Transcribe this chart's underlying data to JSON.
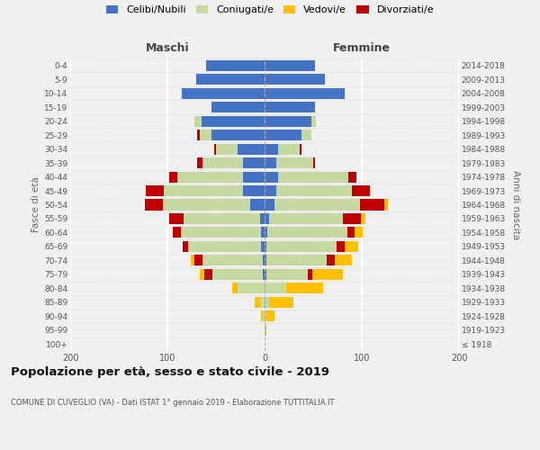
{
  "age_groups": [
    "100+",
    "95-99",
    "90-94",
    "85-89",
    "80-84",
    "75-79",
    "70-74",
    "65-69",
    "60-64",
    "55-59",
    "50-54",
    "45-49",
    "40-44",
    "35-39",
    "30-34",
    "25-29",
    "20-24",
    "15-19",
    "10-14",
    "5-9",
    "0-4"
  ],
  "birth_years": [
    "≤ 1918",
    "1919-1923",
    "1924-1928",
    "1929-1933",
    "1934-1938",
    "1939-1943",
    "1944-1948",
    "1949-1953",
    "1954-1958",
    "1959-1963",
    "1964-1968",
    "1969-1973",
    "1974-1978",
    "1979-1983",
    "1984-1988",
    "1989-1993",
    "1994-1998",
    "1999-2003",
    "2004-2008",
    "2009-2013",
    "2014-2018"
  ],
  "males": {
    "celibi": [
      0,
      0,
      0,
      0,
      0,
      2,
      2,
      4,
      4,
      5,
      15,
      22,
      22,
      22,
      28,
      55,
      65,
      55,
      85,
      70,
      60
    ],
    "coniugati": [
      0,
      0,
      2,
      5,
      28,
      52,
      62,
      75,
      82,
      78,
      90,
      82,
      68,
      42,
      22,
      12,
      7,
      0,
      0,
      0,
      0
    ],
    "vedovi": [
      0,
      0,
      2,
      5,
      5,
      5,
      4,
      0,
      0,
      0,
      0,
      0,
      0,
      0,
      0,
      0,
      0,
      0,
      0,
      0,
      0
    ],
    "divorziati": [
      0,
      0,
      0,
      0,
      0,
      8,
      8,
      5,
      8,
      15,
      18,
      18,
      8,
      5,
      2,
      2,
      0,
      0,
      0,
      0,
      0
    ]
  },
  "females": {
    "nubili": [
      0,
      0,
      0,
      0,
      0,
      2,
      2,
      2,
      3,
      5,
      10,
      12,
      14,
      12,
      14,
      38,
      48,
      52,
      82,
      62,
      52
    ],
    "coniugate": [
      0,
      0,
      2,
      5,
      22,
      42,
      62,
      72,
      82,
      76,
      88,
      78,
      72,
      38,
      22,
      10,
      5,
      0,
      0,
      0,
      0
    ],
    "vedove": [
      0,
      2,
      8,
      25,
      38,
      32,
      18,
      14,
      8,
      5,
      4,
      0,
      0,
      0,
      0,
      0,
      0,
      0,
      0,
      0,
      0
    ],
    "divorziate": [
      0,
      0,
      0,
      0,
      0,
      5,
      8,
      8,
      8,
      18,
      25,
      18,
      8,
      2,
      2,
      0,
      0,
      0,
      0,
      0,
      0
    ]
  },
  "colors": {
    "celibi": "#4472c4",
    "coniugati": "#c5d9a0",
    "vedovi": "#ffc000",
    "divorziati": "#c00000"
  },
  "legend_labels": [
    "Celibi/Nubili",
    "Coniugati/e",
    "Vedovi/e",
    "Divorziati/e"
  ],
  "xlim": [
    -200,
    200
  ],
  "title": "Popolazione per età, sesso e stato civile - 2019",
  "subtitle": "COMUNE DI CUVEGLIO (VA) - Dati ISTAT 1° gennaio 2019 - Elaborazione TUTTITALIA.IT",
  "xlabel_left": "Maschi",
  "xlabel_right": "Femmine",
  "ylabel_left": "Fasce di età",
  "ylabel_right": "Anni di nascita",
  "bg_color": "#f0f0f0",
  "grid_color": "#ffffff"
}
